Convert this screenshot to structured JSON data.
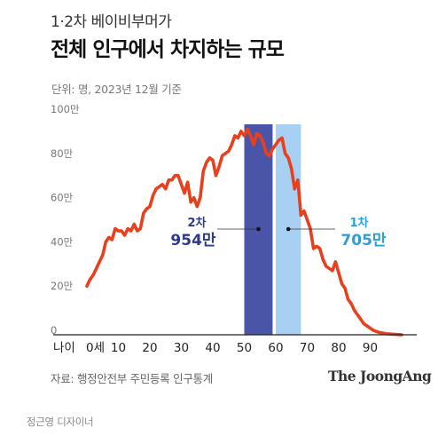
{
  "header": {
    "subtitle": "1·2차 베이비부머가",
    "title": "전체 인구에서 차지하는 규모",
    "unit_note": "단위: 명, 2023년 12월 기준"
  },
  "footer": {
    "source": "자료: 행정안전부 주민등록 인구통계",
    "brand": "The JoongAng",
    "credit": "정근영 디자이너"
  },
  "colors": {
    "line": "#e8401c",
    "band1": "#4a55a8",
    "band2": "#a8d0f2",
    "label1": "#2c3a8c",
    "label2": "#2aa0d6"
  },
  "chart_data": {
    "type": "line",
    "xlabel": "나이",
    "x_unit": "세",
    "y_unit": "만",
    "xlim": [
      0,
      100
    ],
    "ylim": [
      0,
      100
    ],
    "xticks": [
      0,
      10,
      20,
      30,
      40,
      50,
      60,
      70,
      80,
      90
    ],
    "yticks": [
      0,
      20,
      40,
      60,
      80,
      100
    ],
    "grid": false,
    "series": [
      {
        "x": [
          0,
          1,
          2,
          3,
          4,
          5,
          6,
          7,
          8,
          9,
          10,
          11,
          12,
          13,
          14,
          15,
          16,
          17,
          18,
          19,
          20,
          21,
          22,
          23,
          24,
          25,
          26,
          27,
          28,
          29,
          30,
          31,
          32,
          33,
          34,
          35,
          36,
          37,
          38,
          39,
          40,
          41,
          42,
          43,
          44,
          45,
          46,
          47,
          48,
          49,
          50,
          51,
          52,
          53,
          54,
          55,
          56,
          57,
          58,
          59,
          60,
          61,
          62,
          63,
          64,
          65,
          66,
          67,
          68,
          69,
          70,
          71,
          72,
          73,
          74,
          75,
          76,
          77,
          78,
          79,
          80,
          81,
          82,
          83,
          84,
          85,
          86,
          87,
          88,
          89,
          90,
          91,
          92,
          93,
          94,
          95,
          96,
          97,
          98,
          99,
          100
        ],
        "values": [
          22,
          25,
          27,
          30,
          33,
          36,
          42,
          44,
          43,
          48,
          47,
          47,
          45,
          48,
          47,
          50,
          47,
          48,
          55,
          57,
          58,
          63,
          66,
          67,
          68,
          66,
          70,
          70,
          72,
          72,
          68,
          64,
          69,
          60,
          62,
          58,
          62,
          74,
          78,
          80,
          79,
          72,
          76,
          81,
          82,
          83,
          86,
          90,
          89,
          92,
          90,
          93,
          90,
          86,
          91,
          90,
          87,
          82,
          81,
          84,
          86,
          88,
          89,
          82,
          80,
          75,
          66,
          70,
          54,
          56,
          52,
          48,
          39,
          40,
          39,
          34,
          31,
          30,
          29,
          33,
          28,
          23,
          21,
          16,
          14,
          11,
          9,
          7,
          5,
          4,
          3,
          2,
          1.5,
          1,
          0.8,
          0.5,
          0.4,
          0.3,
          0.2,
          0.1,
          0
        ]
      }
    ],
    "bands": [
      {
        "name": "2차",
        "x_start": 50,
        "x_end": 59,
        "value": "954만"
      },
      {
        "name": "1차",
        "x_start": 60,
        "x_end": 68,
        "value": "705만"
      }
    ]
  }
}
